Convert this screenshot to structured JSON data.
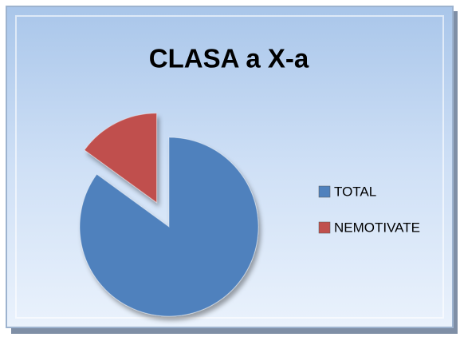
{
  "chart_data": {
    "type": "pie",
    "title": "CLASA  a X-a",
    "categories": [
      "TOTAL",
      "NEMOTIVATE"
    ],
    "values": [
      85,
      15
    ],
    "colors": [
      "#4f81bd",
      "#c0504d"
    ],
    "legend": "right"
  }
}
